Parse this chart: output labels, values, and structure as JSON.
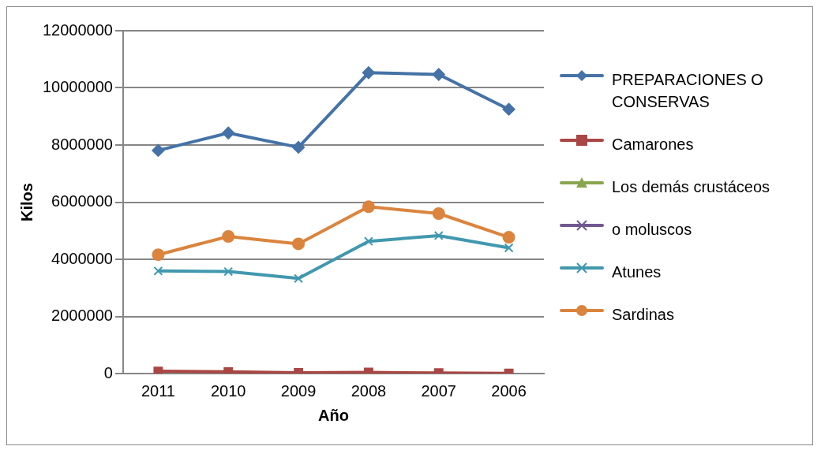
{
  "chart_data": {
    "type": "line",
    "xlabel": "Año",
    "ylabel": "Kilos",
    "categories": [
      "2011",
      "2010",
      "2009",
      "2008",
      "2007",
      "2006"
    ],
    "series": [
      {
        "name": "PREPARACIONES O CONSERVAS",
        "color": "#4572a7",
        "marker": "diamond",
        "values": [
          7810000,
          8420000,
          7920000,
          10530000,
          10470000,
          9250000
        ]
      },
      {
        "name": "Camarones",
        "color": "#aa4643",
        "marker": "square",
        "values": [
          80000,
          60000,
          30000,
          40000,
          20000,
          10000
        ]
      },
      {
        "name": "Los demás crustáceos",
        "color": "#89a54e",
        "marker": "triangle",
        "values": [
          null,
          null,
          null,
          null,
          null,
          null
        ]
      },
      {
        "name": "o moluscos",
        "color": "#71588f",
        "marker": "cross",
        "values": [
          null,
          null,
          null,
          null,
          null,
          null
        ]
      },
      {
        "name": "Atunes",
        "color": "#4198af",
        "marker": "cross",
        "values": [
          3590000,
          3570000,
          3330000,
          4630000,
          4830000,
          4400000
        ]
      },
      {
        "name": "Sardinas",
        "color": "#db843d",
        "marker": "circle",
        "values": [
          4160000,
          4800000,
          4540000,
          5840000,
          5600000,
          4770000
        ]
      }
    ],
    "ylim": [
      0,
      12000000
    ],
    "yticks": [
      0,
      2000000,
      4000000,
      6000000,
      8000000,
      10000000,
      12000000
    ],
    "grid": "y",
    "legend": "right"
  }
}
